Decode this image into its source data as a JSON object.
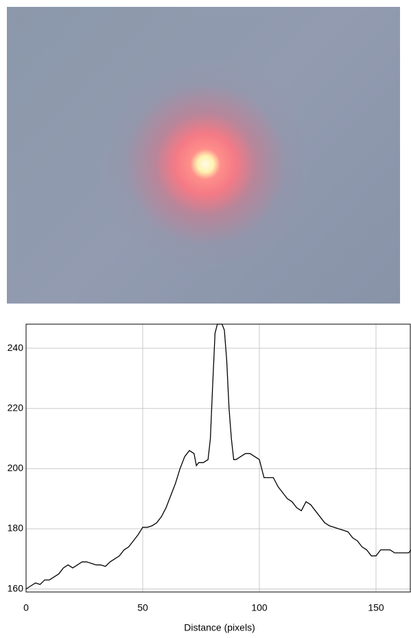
{
  "chart_data": {
    "type": "line",
    "x_label": "Distance (pixels)",
    "x": [
      0,
      2,
      4,
      6,
      8,
      10,
      12,
      14,
      16,
      18,
      20,
      22,
      24,
      26,
      28,
      30,
      32,
      34,
      36,
      38,
      40,
      42,
      44,
      46,
      48,
      50,
      52,
      54,
      56,
      58,
      60,
      62,
      64,
      66,
      68,
      70,
      72,
      73,
      74,
      76,
      78,
      79,
      80,
      81,
      82,
      83,
      84,
      85,
      86,
      87,
      88,
      89,
      90,
      92,
      94,
      96,
      98,
      100,
      101,
      102,
      104,
      106,
      108,
      110,
      112,
      114,
      116,
      118,
      120,
      122,
      124,
      126,
      128,
      130,
      132,
      134,
      136,
      138,
      140,
      142,
      144,
      146,
      148,
      150,
      152,
      154,
      156,
      158,
      160,
      162,
      164,
      165
    ],
    "series": [
      {
        "color": "#000000",
        "values": [
          160,
          161,
          162,
          161.5,
          163,
          163,
          164,
          165,
          167,
          168,
          167,
          168,
          169,
          169,
          168.5,
          168,
          168,
          167.5,
          169,
          170,
          171,
          173,
          174,
          176,
          178,
          180.5,
          180.5,
          181,
          182,
          184,
          187,
          191,
          195,
          200,
          204,
          206,
          205,
          201,
          202,
          202,
          203,
          210,
          228,
          245,
          248,
          248,
          248,
          246,
          236,
          220,
          210,
          203,
          203,
          204,
          205,
          205,
          204,
          203,
          200,
          197,
          197,
          197,
          194,
          192,
          190,
          189,
          187,
          186,
          189,
          188,
          186,
          184,
          182,
          181,
          180.5,
          180,
          179.5,
          179,
          177,
          176,
          174,
          173,
          171,
          171,
          173,
          173,
          173,
          172,
          172,
          172,
          172,
          173
        ]
      }
    ],
    "xlim": [
      0,
      165
    ],
    "ylim": [
      159,
      248
    ],
    "xticks": [
      0,
      50,
      100,
      150
    ],
    "yticks": [
      160,
      180,
      200,
      220,
      240
    ],
    "grid": true
  }
}
